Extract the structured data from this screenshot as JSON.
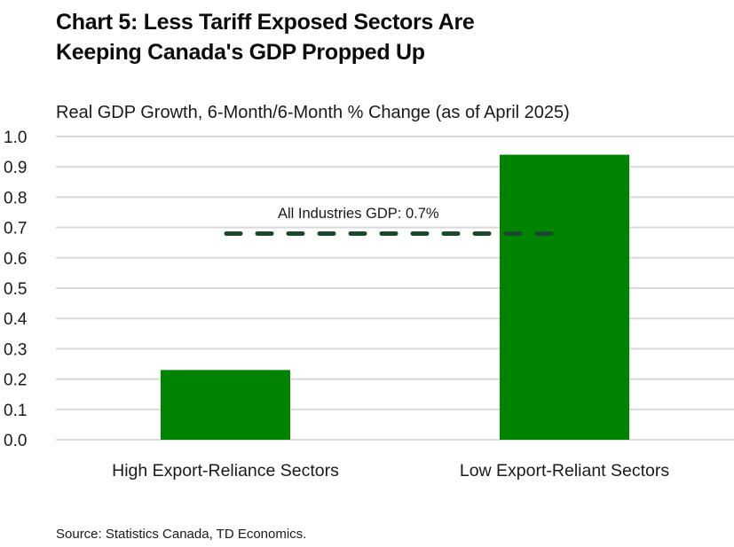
{
  "title_line1": "Chart 5: Less Tariff Exposed Sectors Are",
  "title_line2": "Keeping Canada's GDP Propped Up",
  "source": "Source: Statistics Canada, TD Economics.",
  "colors": {
    "bar": "#008400",
    "reference_line": "#1b4a2a",
    "grid": "#d9d9d9"
  },
  "chart_data": {
    "type": "bar",
    "title": "Chart 5: Less Tariff Exposed Sectors Are Keeping Canada's GDP Propped Up",
    "subtitle": "Real GDP Growth, 6-Month/6-Month % Change (as of April 2025)",
    "xlabel": "",
    "ylabel": "",
    "categories": [
      "High Export-Reliance Sectors",
      "Low Export-Reliant Sectors"
    ],
    "values": [
      0.23,
      0.94
    ],
    "ylim": [
      0.0,
      1.0
    ],
    "yticks": [
      "0.0",
      "0.1",
      "0.2",
      "0.3",
      "0.4",
      "0.5",
      "0.6",
      "0.7",
      "0.8",
      "0.9",
      "1.0"
    ],
    "ytick_values": [
      0.0,
      0.1,
      0.2,
      0.3,
      0.4,
      0.5,
      0.6,
      0.7,
      0.8,
      0.9,
      1.0
    ],
    "grid": true,
    "legend": "none",
    "reference_line": {
      "label": "All Industries GDP: 0.7%",
      "value": 0.68,
      "style": "dashed"
    }
  }
}
